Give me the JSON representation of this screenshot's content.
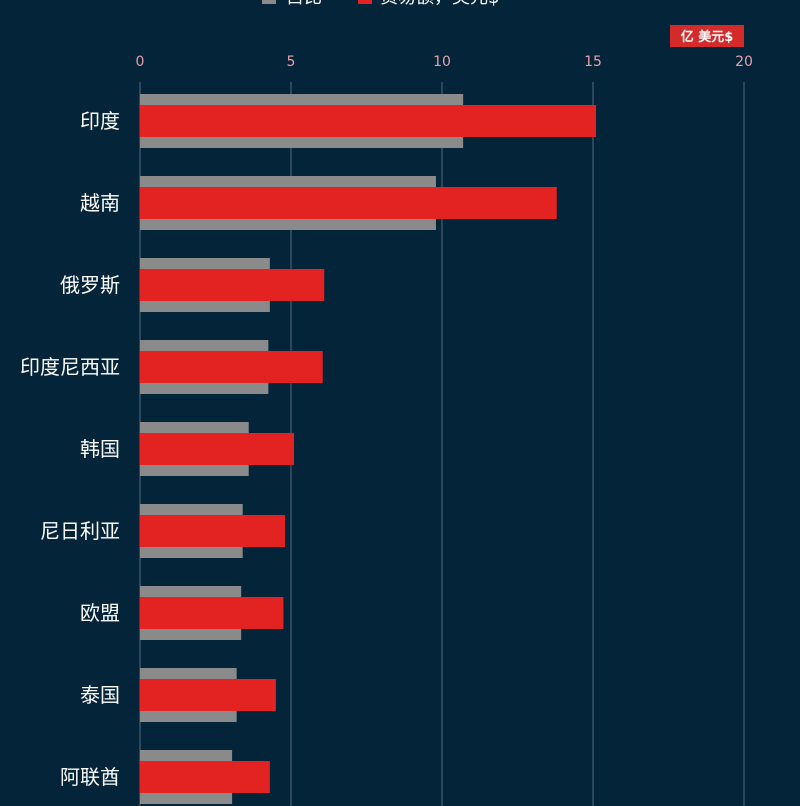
{
  "legend": {
    "items": [
      {
        "label": "占比",
        "color": "#8a8a8a"
      },
      {
        "label": "贸易额，美元$",
        "color": "#e32222"
      }
    ]
  },
  "unit_badge": "亿 美元$",
  "colors": {
    "background": "#04243a",
    "grid": "#8a9aa8",
    "bar_primary": "#e32222",
    "bar_secondary": "#8a8a8a",
    "tick_label": "#e8a0a8",
    "category_label": "#ffffff",
    "badge_bg": "#d42a2a"
  },
  "chart_data": {
    "type": "bar",
    "orientation": "horizontal",
    "categories": [
      "印度",
      "越南",
      "俄罗斯",
      "印度尼西亚",
      "韩国",
      "尼日利亚",
      "欧盟",
      "泰国",
      "阿联酋"
    ],
    "series": [
      {
        "name": "贸易额，美元$",
        "color": "#e32222",
        "values": [
          15.1,
          13.8,
          6.1,
          6.05,
          5.1,
          4.8,
          4.75,
          4.5,
          4.3
        ]
      },
      {
        "name": "占比",
        "color": "#8a8a8a",
        "values": [
          10.7,
          9.8,
          4.3,
          4.25,
          3.6,
          3.4,
          3.35,
          3.2,
          3.05
        ]
      }
    ],
    "x_ticks": [
      0,
      5,
      10,
      15,
      20
    ],
    "xlim": [
      0,
      20
    ],
    "grid": true,
    "legend_position": "top"
  }
}
